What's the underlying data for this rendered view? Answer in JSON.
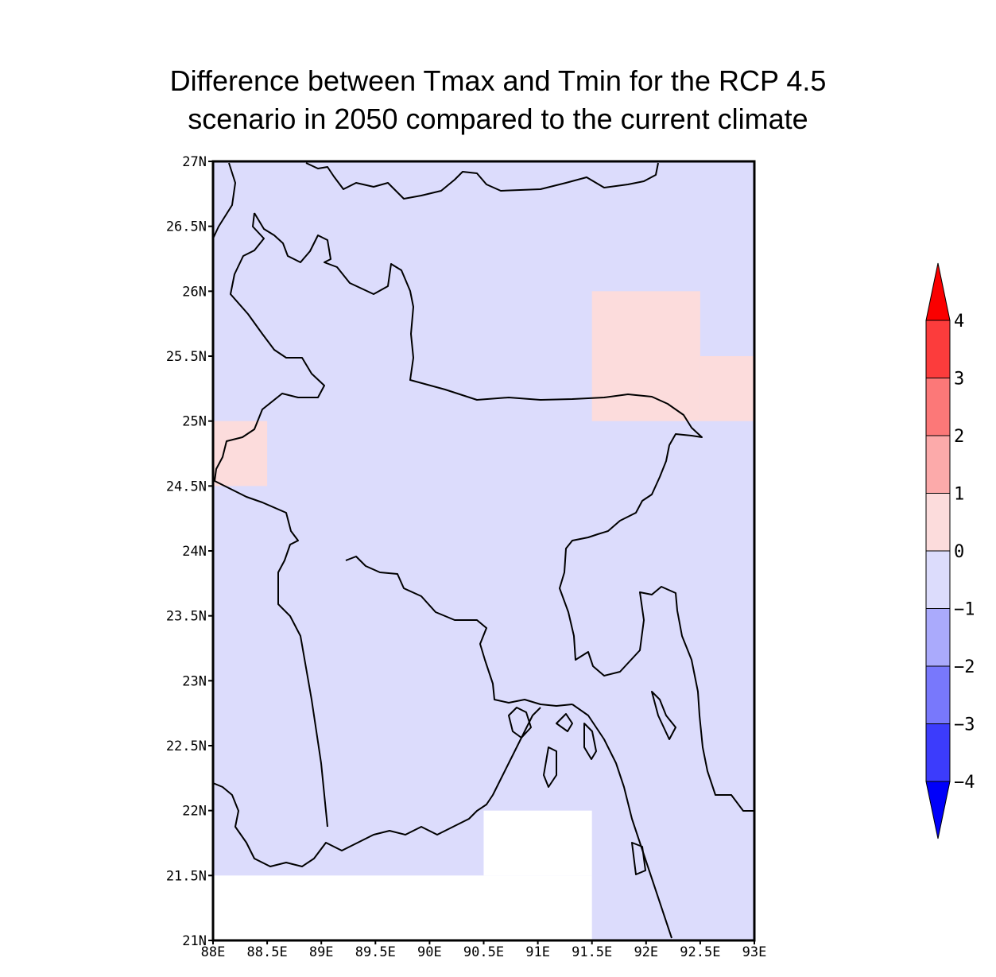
{
  "title": {
    "line1": "Difference between Tmax and Tmin for the RCP 4.5",
    "line2": "scenario in 2050 compared to the current climate"
  },
  "map": {
    "lon_range": [
      88,
      93
    ],
    "lat_range": [
      21,
      27
    ],
    "lon_ticks": [
      "88E",
      "88.5E",
      "89E",
      "89.5E",
      "90E",
      "90.5E",
      "91E",
      "91.5E",
      "92E",
      "92.5E",
      "93E"
    ],
    "lat_ticks": [
      "21N",
      "21.5N",
      "22N",
      "22.5N",
      "23N",
      "23.5N",
      "24N",
      "24.5N",
      "25N",
      "25.5N",
      "26N",
      "26.5N",
      "27N"
    ],
    "background_class_color": "#dcdcfc",
    "cells": [
      {
        "lon0": 88.0,
        "lon1": 88.5,
        "lat0": 24.5,
        "lat1": 25.0,
        "class": "0 to 1",
        "color": "#fcdcdc"
      },
      {
        "lon0": 91.5,
        "lon1": 92.5,
        "lat0": 25.0,
        "lat1": 26.0,
        "class": "0 to 1",
        "color": "#fcdcdc"
      },
      {
        "lon0": 92.5,
        "lon1": 93.0,
        "lat0": 25.0,
        "lat1": 25.5,
        "class": "0 to 1",
        "color": "#fcdcdc"
      },
      {
        "lon0": 88.0,
        "lon1": 91.5,
        "lat0": 21.0,
        "lat1": 21.5,
        "class": "missing",
        "color": "#ffffff"
      },
      {
        "lon0": 90.5,
        "lon1": 91.5,
        "lat0": 21.5,
        "lat1": 22.0,
        "class": "missing",
        "color": "#ffffff"
      }
    ]
  },
  "colorbar": {
    "labels": [
      "4",
      "3",
      "2",
      "1",
      "0",
      "−1",
      "−2",
      "−3",
      "−4"
    ],
    "top_arrow_color": "#fa0000",
    "bottom_arrow_color": "#0000fa",
    "bins": [
      {
        "range": "3 to 4",
        "color": "#fc3c3c"
      },
      {
        "range": "2 to 3",
        "color": "#fc7878"
      },
      {
        "range": "1 to 2",
        "color": "#fcaaaa"
      },
      {
        "range": "0 to 1",
        "color": "#fcdcdc"
      },
      {
        "range": "-1 to 0",
        "color": "#dcdcfc"
      },
      {
        "range": "-2 to -1",
        "color": "#aaaafc"
      },
      {
        "range": "-3 to -2",
        "color": "#7878fc"
      },
      {
        "range": "-4 to -3",
        "color": "#3c3cfc"
      }
    ]
  }
}
